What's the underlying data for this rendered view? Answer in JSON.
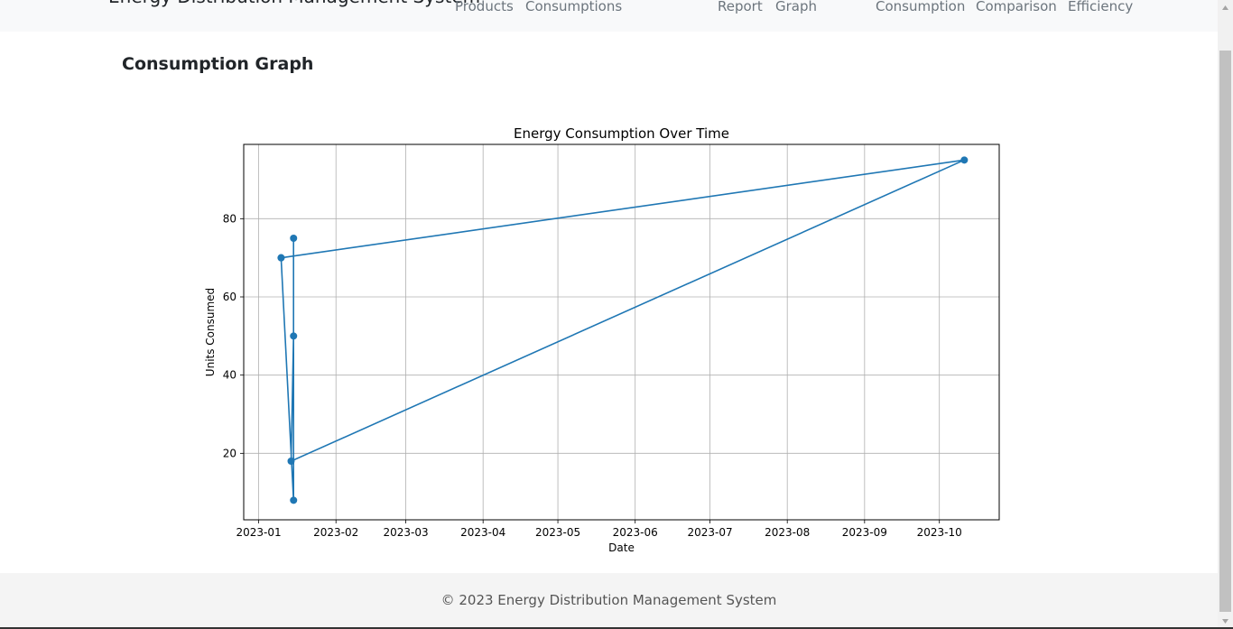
{
  "navbar": {
    "brand": "Energy Distribution Management System",
    "links": [
      "Products",
      "Consumptions",
      "Report",
      "Graph",
      "Consumption",
      "Comparison",
      "Efficiency"
    ]
  },
  "main": {
    "title": "Consumption Graph"
  },
  "chart_data": {
    "type": "line",
    "title": "Energy Consumption Over Time",
    "xlabel": "Date",
    "ylabel": "Units Consumed",
    "x_ticks": [
      "2023-01",
      "2023-02",
      "2023-03",
      "2023-04",
      "2023-05",
      "2023-06",
      "2023-07",
      "2023-08",
      "2023-09",
      "2023-10"
    ],
    "y_ticks": [
      20,
      40,
      60,
      80
    ],
    "xlim": [
      "2022-12-26",
      "2023-10-25"
    ],
    "ylim": [
      3,
      99
    ],
    "grid": true,
    "color": "#1f77b4",
    "series": [
      {
        "x": [
          "2023-01-10",
          "2023-01-15",
          "2023-01-15",
          "2023-01-15",
          "2023-01-14",
          "2023-10-11",
          "2023-01-10"
        ],
        "y": [
          70,
          8,
          75,
          50,
          18,
          95,
          70
        ]
      }
    ]
  },
  "footer": {
    "text": "© 2023 Energy Distribution Management System"
  }
}
